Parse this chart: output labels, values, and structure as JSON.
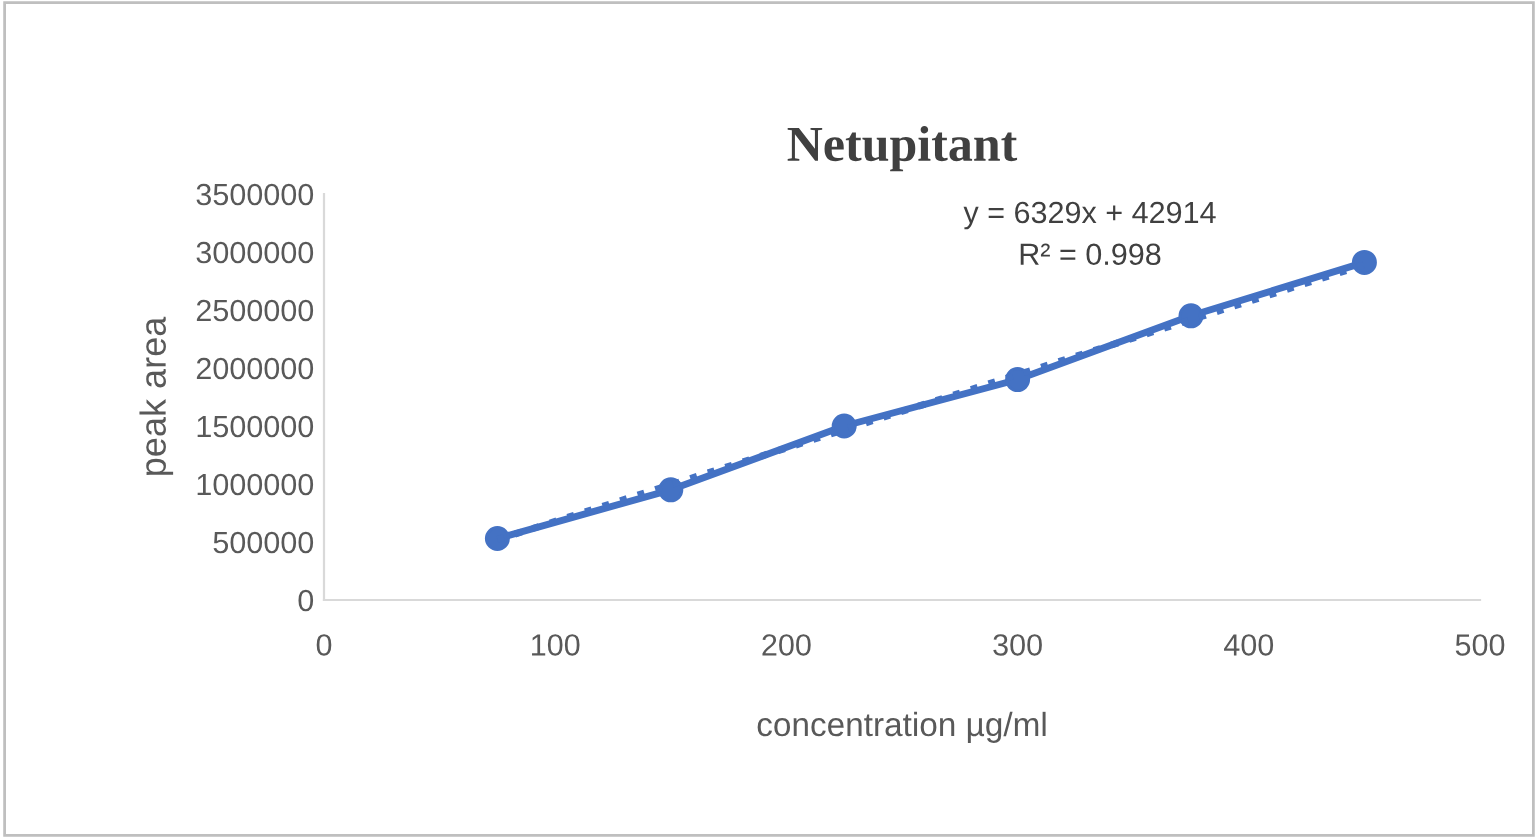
{
  "chart_data": {
    "type": "line",
    "title": "Netupitant",
    "xlabel": "concentration µg/ml",
    "ylabel": "peak area",
    "xlim": [
      0,
      500
    ],
    "xticks": [
      0,
      100,
      200,
      300,
      400,
      500
    ],
    "ylim": [
      0,
      3500000
    ],
    "yticks": [
      0,
      500000,
      1000000,
      1500000,
      2000000,
      2500000,
      3000000,
      3500000
    ],
    "grid": false,
    "legend": false,
    "series": [
      {
        "color": "#4472c4",
        "marker": "circle",
        "line_style": "solid",
        "x": [
          75,
          150,
          225,
          300,
          375,
          450
        ],
        "values": [
          530000,
          950000,
          1500000,
          1900000,
          2450000,
          2910000
        ]
      },
      {
        "type": "line",
        "color": "#4472c4",
        "marker": "none",
        "line_style": "dotted",
        "x": [
          75,
          450
        ],
        "values": [
          520000,
          2890000
        ]
      }
    ],
    "annotations": [
      "y = 6329x + 42914\nR² = 0.998"
    ]
  }
}
